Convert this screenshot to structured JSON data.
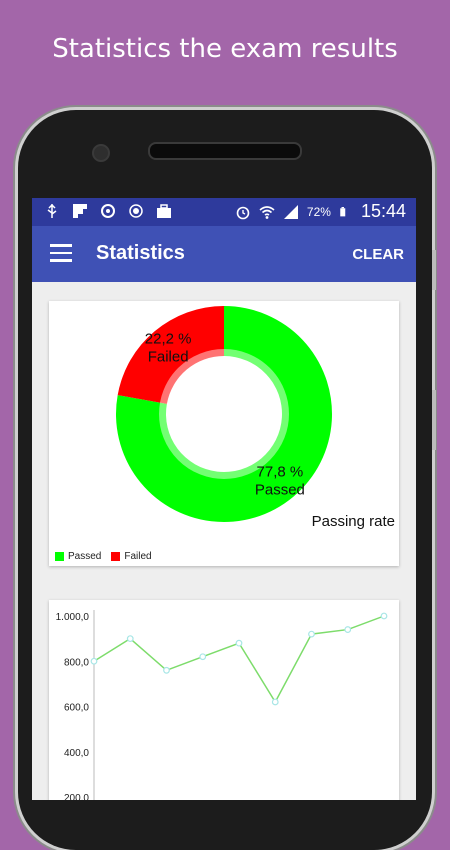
{
  "promo_caption": "Statistics the exam results",
  "status_bar": {
    "battery": "72%",
    "time": "15:44",
    "icons": [
      "usb-icon",
      "flipboard-icon",
      "sync-icon",
      "record-icon",
      "briefcase-icon",
      "alarm-icon",
      "wifi-icon",
      "signal-icon",
      "battery-icon"
    ]
  },
  "app_bar": {
    "title": "Statistics",
    "clear_label": "CLEAR",
    "menu_icon": "hamburger-menu-icon"
  },
  "colors": {
    "status_bar": "#2e3a9c",
    "app_bar": "#3f51b5",
    "passed": "#00ff00",
    "failed": "#ff0000",
    "line": "#7ddc6b",
    "point": "#a8e6e6"
  },
  "chart_data": [
    {
      "type": "pie",
      "title": "",
      "description": "Passing rate",
      "labels": [
        "Passed",
        "Failed"
      ],
      "values": [
        77.8,
        22.2
      ],
      "value_labels": [
        "77,8 %",
        "22,2 %"
      ],
      "legend": "bottom-left",
      "hole": true
    },
    {
      "type": "line",
      "ylim": [
        200,
        1000
      ],
      "ytick_labels": [
        "1.000,0",
        "800,0",
        "600,0",
        "400,0",
        "200,0"
      ],
      "ytick_values": [
        1000,
        800,
        600,
        400,
        200
      ],
      "x": [
        1,
        2,
        3,
        4,
        5,
        6,
        7,
        8,
        9
      ],
      "series": [
        {
          "values": [
            800,
            900,
            760,
            820,
            880,
            620,
            920,
            940,
            1000
          ]
        }
      ],
      "grid": false
    }
  ]
}
